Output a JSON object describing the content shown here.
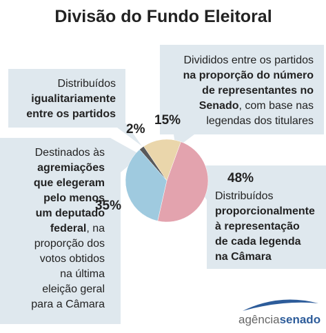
{
  "chart_data": {
    "type": "pie",
    "title": "Divisão do Fundo Eleitoral",
    "values": [
      2,
      15,
      48,
      35
    ],
    "value_labels": [
      "2%",
      "15%",
      "48%",
      "35%"
    ],
    "colors": [
      "#58595b",
      "#ead6ab",
      "#e3a3ae",
      "#9fcadf"
    ],
    "callouts": [
      [
        [
          {
            "text": "Distribuídos",
            "bold": false
          }
        ],
        [
          {
            "text": "igualitariamente",
            "bold": true
          }
        ],
        [
          {
            "text": "entre os partidos",
            "bold": true
          }
        ]
      ],
      [
        [
          {
            "text": "Divididos entre os partidos",
            "bold": false
          }
        ],
        [
          {
            "text": "na proporção do número",
            "bold": true
          }
        ],
        [
          {
            "text": "de representantes no",
            "bold": true
          }
        ],
        [
          {
            "text": "Senado",
            "bold": true
          },
          {
            "text": ", com base nas",
            "bold": false
          }
        ],
        [
          {
            "text": "legendas dos titulares",
            "bold": false
          }
        ]
      ],
      [
        [
          {
            "text": "Distribuídos",
            "bold": false
          }
        ],
        [
          {
            "text": "proporcionalmente",
            "bold": true
          }
        ],
        [
          {
            "text": "à representação",
            "bold": true
          }
        ],
        [
          {
            "text": "de cada legenda",
            "bold": true
          }
        ],
        [
          {
            "text": "na Câmara",
            "bold": true
          }
        ]
      ],
      [
        [
          {
            "text": "Destinados às",
            "bold": false
          }
        ],
        [
          {
            "text": "agremiações",
            "bold": true
          }
        ],
        [
          {
            "text": "que elegeram",
            "bold": true
          }
        ],
        [
          {
            "text": "pelo menos",
            "bold": true
          }
        ],
        [
          {
            "text": "um deputado",
            "bold": true
          }
        ],
        [
          {
            "text": "federal",
            "bold": true
          },
          {
            "text": ", na",
            "bold": false
          }
        ],
        [
          {
            "text": "proporção dos",
            "bold": false
          }
        ],
        [
          {
            "text": "votos obtidos",
            "bold": false
          }
        ],
        [
          {
            "text": "na última",
            "bold": false
          }
        ],
        [
          {
            "text": "eleição geral",
            "bold": false
          }
        ],
        [
          {
            "text": "para a Câmara",
            "bold": false
          }
        ]
      ]
    ],
    "logo": [
      "agência",
      "senado"
    ]
  }
}
